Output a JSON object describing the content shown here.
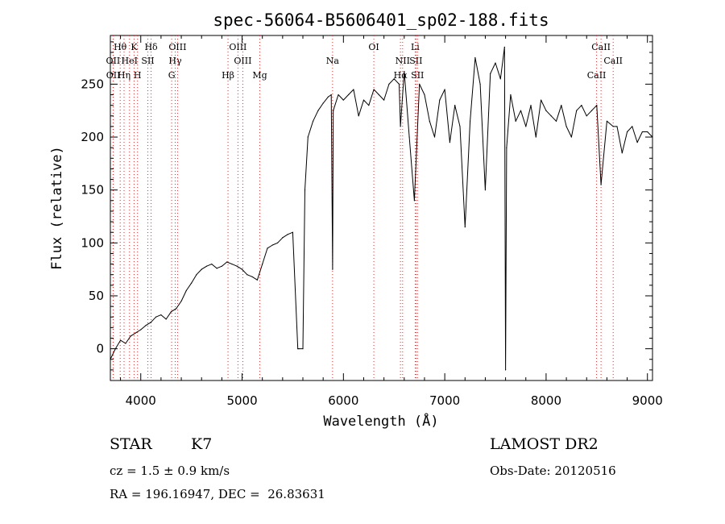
{
  "chart_data": {
    "type": "line",
    "title": "spec-56064-B5606401_sp02-188.fits",
    "xlabel": "Wavelength (Å)",
    "ylabel": "Flux (relative)",
    "xlim": [
      3700,
      9050
    ],
    "ylim": [
      -30,
      296
    ],
    "xticks": [
      4000,
      5000,
      6000,
      7000,
      8000,
      9000
    ],
    "yticks": [
      0,
      50,
      100,
      150,
      200,
      250
    ],
    "grid": false,
    "series": [
      {
        "name": "",
        "x": [
          3700,
          3750,
          3800,
          3850,
          3900,
          3950,
          4000,
          4050,
          4100,
          4150,
          4200,
          4250,
          4300,
          4350,
          4400,
          4450,
          4500,
          4550,
          4600,
          4650,
          4700,
          4750,
          4800,
          4850,
          4900,
          4950,
          5000,
          5050,
          5100,
          5150,
          5200,
          5250,
          5300,
          5350,
          5400,
          5450,
          5500,
          5550,
          5560,
          5600,
          5620,
          5650,
          5700,
          5750,
          5800,
          5850,
          5880,
          5893,
          5900,
          5950,
          6000,
          6050,
          6100,
          6150,
          6200,
          6250,
          6300,
          6350,
          6400,
          6450,
          6500,
          6550,
          6563,
          6600,
          6650,
          6700,
          6750,
          6800,
          6850,
          6900,
          6950,
          7000,
          7050,
          7100,
          7150,
          7200,
          7250,
          7300,
          7350,
          7400,
          7450,
          7500,
          7550,
          7590,
          7600,
          7610,
          7650,
          7700,
          7750,
          7800,
          7850,
          7900,
          7950,
          8000,
          8050,
          8100,
          8150,
          8200,
          8250,
          8300,
          8350,
          8400,
          8450,
          8500,
          8542,
          8600,
          8662,
          8700,
          8750,
          8800,
          8850,
          8900,
          8950,
          9000,
          9050
        ],
        "y": [
          -10,
          0,
          8,
          5,
          12,
          15,
          18,
          22,
          25,
          30,
          32,
          28,
          35,
          38,
          45,
          55,
          62,
          70,
          75,
          78,
          80,
          76,
          78,
          82,
          80,
          78,
          75,
          70,
          68,
          65,
          80,
          95,
          98,
          100,
          105,
          108,
          110,
          0,
          0,
          0,
          150,
          200,
          215,
          225,
          232,
          238,
          240,
          75,
          225,
          240,
          235,
          240,
          245,
          220,
          235,
          230,
          245,
          240,
          235,
          250,
          255,
          250,
          210,
          262,
          200,
          140,
          250,
          240,
          215,
          200,
          235,
          245,
          195,
          230,
          210,
          115,
          215,
          275,
          250,
          150,
          260,
          270,
          255,
          285,
          -20,
          190,
          240,
          215,
          225,
          210,
          230,
          200,
          235,
          225,
          220,
          215,
          230,
          210,
          200,
          225,
          230,
          220,
          225,
          230,
          155,
          215,
          210,
          210,
          185,
          205,
          210,
          195,
          205,
          205,
          200
        ]
      }
    ],
    "line_markers": [
      {
        "label": "Hθ",
        "wave": 3797
      },
      {
        "label": "K",
        "wave": 3934
      },
      {
        "label": "Hδ",
        "wave": 4102
      },
      {
        "label": "OIII",
        "wave": 4363
      },
      {
        "label": "OIII",
        "wave": 4959
      },
      {
        "label": "OI",
        "wave": 6300
      },
      {
        "label": "Li",
        "wave": 6708
      },
      {
        "label": "CaII",
        "wave": 8542
      },
      {
        "label": "OII",
        "wave": 3727
      },
      {
        "label": "HeI",
        "wave": 3889
      },
      {
        "label": "SII",
        "wave": 4070
      },
      {
        "label": "Hγ",
        "wave": 4340
      },
      {
        "label": "OIII",
        "wave": 5007
      },
      {
        "label": "Na",
        "wave": 5893
      },
      {
        "label": "NII",
        "wave": 6584
      },
      {
        "label": "SII",
        "wave": 6716
      },
      {
        "label": "CaII",
        "wave": 8662
      },
      {
        "label": "OII",
        "wave": 3729
      },
      {
        "label": "Hη",
        "wave": 3835
      },
      {
        "label": "H",
        "wave": 3968
      },
      {
        "label": "G",
        "wave": 4305
      },
      {
        "label": "Hβ",
        "wave": 4861
      },
      {
        "label": "Mg",
        "wave": 5175
      },
      {
        "label": "Hα",
        "wave": 6563
      },
      {
        "label": "SII",
        "wave": 6731
      },
      {
        "label": "CaII",
        "wave": 8498
      }
    ]
  },
  "info": {
    "object_class": "STAR",
    "subclass": "K7",
    "redshift_line": "cz = 1.5 ± 0.9 km/s",
    "coords_line": "RA = 196.16947, DEC =  26.83631",
    "survey": "LAMOST DR2",
    "obs_date_line": "Obs-Date: 20120516"
  },
  "colors": {
    "line": "#000000",
    "marker_line": "#cc3333",
    "background": "#ffffff"
  }
}
